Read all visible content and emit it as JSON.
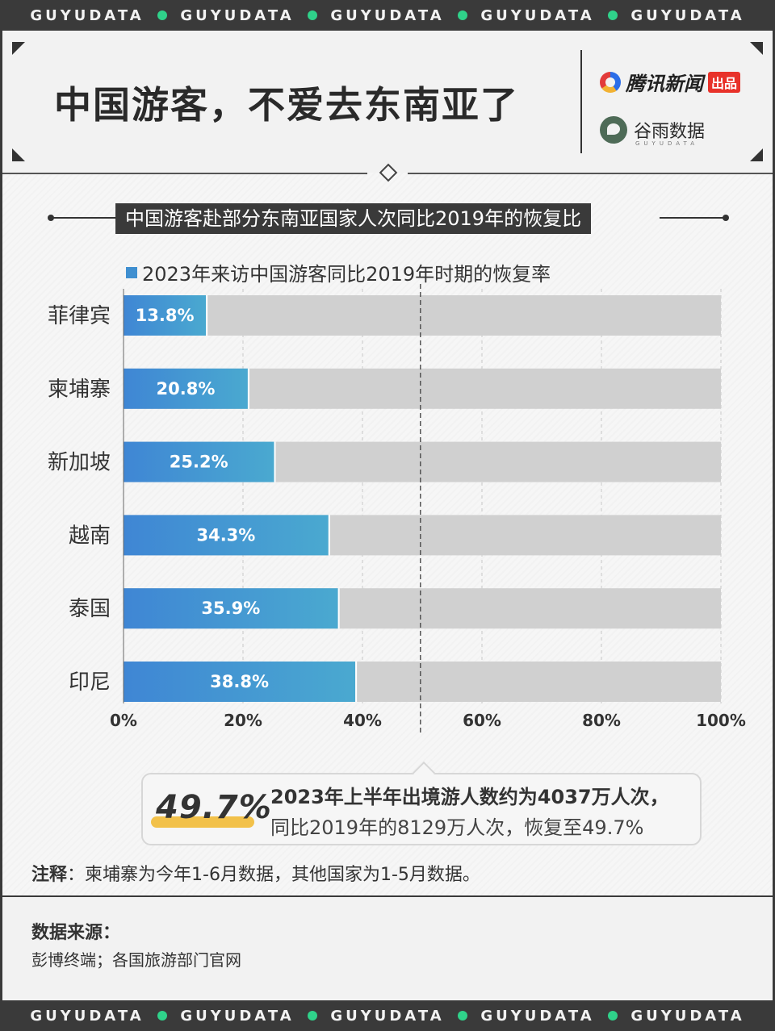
{
  "ticker": {
    "words": [
      "GUYUDATA",
      "GUYUDATA",
      "GUYUDATA",
      "GUYUDATA",
      "GUYUDATA"
    ]
  },
  "header": {
    "title": "中国游客，不爱去东南亚了",
    "brand1_name": "腾讯新闻",
    "brand1_tag": "出品",
    "brand2_name": "谷雨数据",
    "brand2_sub": "GUYUDATA"
  },
  "chart_data": {
    "type": "bar",
    "orientation": "horizontal",
    "title": "中国游客赴部分东南亚国家人次同比2019年的恢复比",
    "categories": [
      "菲律宾",
      "柬埔寨",
      "新加坡",
      "越南",
      "泰国",
      "印尼"
    ],
    "series": [
      {
        "name": "2023年来访中国游客同比2019年时期的恢复率",
        "values": [
          13.8,
          20.8,
          25.2,
          34.3,
          35.9,
          38.8
        ],
        "labels": [
          "13.8%",
          "20.8%",
          "25.2%",
          "34.3%",
          "35.9%",
          "38.8%"
        ]
      }
    ],
    "xlim": [
      0,
      100
    ],
    "xticks": [
      "0%",
      "20%",
      "40%",
      "60%",
      "80%",
      "100%"
    ],
    "reference_line": 49.7,
    "grid": true,
    "colors": {
      "bar_start": "#3f86d4",
      "bar_end": "#4aa9d0",
      "track": "#d0d0d0"
    }
  },
  "callout": {
    "big": "49.7%",
    "line1": "2023年上半年出境游人数约为4037万人次，",
    "line2": "同比2019年的8129万人次，恢复至49.7%"
  },
  "note": {
    "label": "注释",
    "text": "：柬埔寨为今年1-6月数据，其他国家为1-5月数据。"
  },
  "source": {
    "title": "数据来源：",
    "text": "彭博终端；各国旅游部门官网"
  }
}
